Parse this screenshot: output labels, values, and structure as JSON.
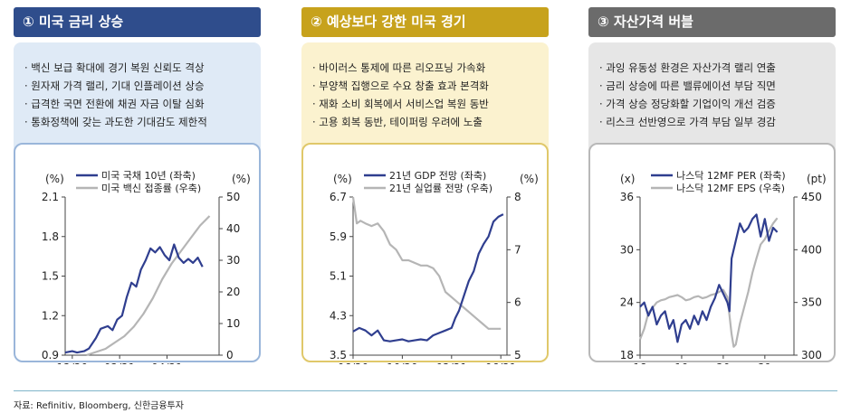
{
  "panels": [
    {
      "title": "① 미국 금리 상승",
      "bullets": [
        "· 백신 보급 확대에 경기 복원 신뢰도 격상",
        "· 원자재 가격 랠리, 기대 인플레이션 상승",
        "· 급격한 국면 전환에 채권 자금 이탈 심화",
        "· 통화정책에 갖는 과도한 기대감도 제한적"
      ]
    },
    {
      "title": "② 예상보다 강한 미국 경기",
      "bullets": [
        "· 바이러스 통제에 따른 리오프닝 가속화",
        "· 부양책 집행으로 수요 창출 효과 본격화",
        "· 재화 소비 회복에서 서비스업 복원 동반",
        "· 고용 회복 동반, 테이퍼링 우려에 노출"
      ]
    },
    {
      "title": "③ 자산가격 버블",
      "bullets": [
        "· 과잉 유동성 환경은 자산가격 랠리 연출",
        "· 금리 상승에 따른 밸류에이션 부담 직면",
        "· 가격 상승 정당화할 기업이익 개선 검증",
        "· 리스크 선반영으로 가격 부담 일부 경감"
      ]
    }
  ],
  "colors": {
    "navy": "#2f4d8c",
    "gold": "#c7a21c",
    "gray": "#6b6b6b",
    "series_dark": "#2f3e8f",
    "series_light": "#b5b5b5"
  },
  "source": "자료: Refinitiv, Bloomberg, 신한금융투자",
  "chart_data": [
    {
      "type": "line",
      "left_unit": "(%)",
      "right_unit": "(%)",
      "ylim_left": [
        0.9,
        2.1
      ],
      "yticks_left": [
        "2.1",
        "1.8",
        "1.5",
        "1.2",
        "0.9"
      ],
      "ylim_right": [
        0,
        50
      ],
      "yticks_right": [
        "50",
        "40",
        "30",
        "20",
        "10",
        "0"
      ],
      "xlim": [
        0,
        6.5
      ],
      "xtick_pos": [
        0.3,
        2.3,
        4.3
      ],
      "xticks": [
        "12/20",
        "02/21",
        "04/21"
      ],
      "series": [
        {
          "name": "미국 국채 10년 (좌축)",
          "axis": "left",
          "color": "#2f3e8f",
          "x": [
            0,
            0.3,
            0.5,
            0.8,
            1.0,
            1.3,
            1.5,
            1.8,
            2.0,
            2.2,
            2.4,
            2.6,
            2.8,
            3.0,
            3.2,
            3.4,
            3.6,
            3.8,
            4.0,
            4.2,
            4.4,
            4.6,
            4.8,
            5.0,
            5.2,
            5.4,
            5.6,
            5.8
          ],
          "y": [
            0.92,
            0.93,
            0.92,
            0.93,
            0.95,
            1.03,
            1.1,
            1.12,
            1.09,
            1.17,
            1.2,
            1.34,
            1.45,
            1.42,
            1.55,
            1.62,
            1.71,
            1.68,
            1.72,
            1.66,
            1.62,
            1.74,
            1.64,
            1.6,
            1.63,
            1.6,
            1.64,
            1.57
          ]
        },
        {
          "name": "미국 백신 접종률 (우축)",
          "axis": "right",
          "color": "#b5b5b5",
          "x": [
            0.9,
            1.3,
            1.7,
            2.1,
            2.5,
            2.9,
            3.3,
            3.7,
            4.1,
            4.5,
            4.9,
            5.3,
            5.7,
            6.1
          ],
          "y": [
            0,
            1,
            2,
            4,
            6,
            9,
            13,
            18,
            24,
            29,
            33,
            37,
            41,
            44
          ]
        }
      ]
    },
    {
      "type": "line",
      "left_unit": "(%)",
      "right_unit": "(%)",
      "ylim_left": [
        3.5,
        6.7
      ],
      "yticks_left": [
        "6.7",
        "5.9",
        "5.1",
        "4.3",
        "3.5"
      ],
      "ylim_right": [
        5,
        8
      ],
      "yticks_right": [
        "8",
        "7",
        "6",
        "5"
      ],
      "xlim": [
        0,
        12.5
      ],
      "xtick_pos": [
        0,
        4,
        8,
        12
      ],
      "xticks": [
        "06/20",
        "10/20",
        "02/21",
        "06/21"
      ],
      "series": [
        {
          "name": "21년 GDP 전망 (좌축)",
          "axis": "left",
          "color": "#2f3e8f",
          "x": [
            0,
            0.5,
            1.0,
            1.5,
            2.0,
            2.5,
            3.0,
            3.5,
            4.0,
            4.5,
            5.0,
            5.5,
            6.0,
            6.5,
            7.0,
            7.5,
            8.0,
            8.3,
            8.6,
            9.0,
            9.4,
            9.8,
            10.2,
            10.6,
            11.0,
            11.4,
            11.8,
            12.2
          ],
          "y": [
            3.98,
            4.05,
            4.0,
            3.9,
            4.0,
            3.8,
            3.78,
            3.8,
            3.82,
            3.78,
            3.8,
            3.82,
            3.8,
            3.9,
            3.95,
            4.0,
            4.05,
            4.25,
            4.4,
            4.7,
            5.0,
            5.2,
            5.55,
            5.75,
            5.9,
            6.2,
            6.3,
            6.35
          ]
        },
        {
          "name": "21년 실업률 전망 (우축)",
          "axis": "right",
          "color": "#b5b5b5",
          "x": [
            0,
            0.3,
            0.6,
            1.0,
            1.5,
            2.0,
            2.5,
            3.0,
            3.5,
            4.0,
            4.5,
            5.0,
            5.5,
            6.0,
            6.5,
            7.0,
            7.5,
            8.0,
            8.5,
            9.0,
            9.5,
            10.0,
            10.5,
            11.0,
            11.5,
            12.0
          ],
          "y": [
            8.0,
            7.5,
            7.55,
            7.5,
            7.45,
            7.5,
            7.35,
            7.1,
            7.0,
            6.8,
            6.8,
            6.75,
            6.7,
            6.7,
            6.65,
            6.5,
            6.2,
            6.1,
            6.0,
            5.9,
            5.8,
            5.7,
            5.6,
            5.5,
            5.5,
            5.5
          ]
        }
      ]
    },
    {
      "type": "line",
      "left_unit": "(x)",
      "right_unit": "(pt)",
      "ylim_left": [
        18,
        36
      ],
      "yticks_left": [
        "36",
        "30",
        "24",
        "18"
      ],
      "ylim_right": [
        300,
        450
      ],
      "yticks_right": [
        "450",
        "400",
        "350",
        "300"
      ],
      "xlim": [
        18,
        21.7
      ],
      "xtick_pos": [
        18,
        19,
        20,
        21
      ],
      "xticks": [
        "18",
        "19",
        "20",
        "21"
      ],
      "series": [
        {
          "name": "나스닥 12MF PER (좌축)",
          "axis": "left",
          "color": "#2f3e8f",
          "x": [
            18.0,
            18.1,
            18.2,
            18.3,
            18.4,
            18.5,
            18.6,
            18.7,
            18.8,
            18.9,
            19.0,
            19.1,
            19.2,
            19.3,
            19.4,
            19.5,
            19.6,
            19.7,
            19.8,
            19.9,
            20.0,
            20.1,
            20.15,
            20.2,
            20.3,
            20.4,
            20.5,
            20.6,
            20.7,
            20.8,
            20.9,
            21.0,
            21.1,
            21.2,
            21.3
          ],
          "y": [
            23.5,
            24.0,
            22.5,
            23.5,
            21.5,
            22.5,
            23.0,
            21.0,
            22.0,
            19.5,
            21.5,
            22.0,
            21.0,
            22.5,
            21.5,
            23.0,
            22.0,
            23.5,
            24.5,
            26.0,
            25.0,
            24.0,
            23.0,
            29.0,
            31.0,
            33.0,
            32.0,
            32.5,
            33.5,
            34.0,
            31.5,
            33.5,
            31.0,
            32.5,
            32.0
          ]
        },
        {
          "name": "나스닥 12MF EPS (우축)",
          "axis": "right",
          "color": "#b5b5b5",
          "x": [
            18.0,
            18.1,
            18.2,
            18.3,
            18.4,
            18.5,
            18.6,
            18.7,
            18.8,
            18.9,
            19.0,
            19.1,
            19.2,
            19.3,
            19.4,
            19.5,
            19.6,
            19.7,
            19.8,
            19.9,
            20.0,
            20.1,
            20.2,
            20.25,
            20.3,
            20.4,
            20.5,
            20.6,
            20.7,
            20.8,
            20.9,
            21.0,
            21.1,
            21.2,
            21.3
          ],
          "y": [
            315,
            325,
            340,
            345,
            350,
            352,
            353,
            355,
            356,
            357,
            355,
            352,
            353,
            355,
            356,
            354,
            355,
            357,
            358,
            360,
            362,
            355,
            320,
            308,
            310,
            330,
            345,
            360,
            378,
            392,
            405,
            410,
            418,
            425,
            430
          ]
        }
      ]
    }
  ]
}
